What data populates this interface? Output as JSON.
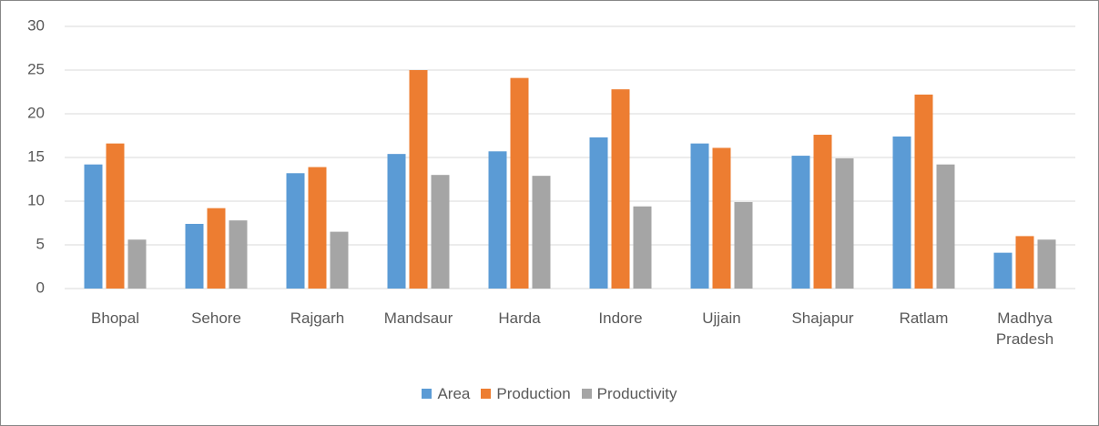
{
  "chart_data": {
    "type": "bar",
    "categories": [
      "Bhopal",
      "Sehore",
      "Rajgarh",
      "Mandsaur",
      "Harda",
      "Indore",
      "Ujjain",
      "Shajapur",
      "Ratlam",
      "Madhya Pradesh"
    ],
    "series": [
      {
        "name": "Area",
        "color": "#5b9bd5",
        "values": [
          14.2,
          7.4,
          13.2,
          15.4,
          15.7,
          17.3,
          16.6,
          15.2,
          17.4,
          4.1
        ]
      },
      {
        "name": "Production",
        "color": "#ed7d31",
        "values": [
          16.6,
          9.2,
          13.9,
          25,
          24.1,
          22.8,
          16.1,
          17.6,
          22.2,
          6.0
        ]
      },
      {
        "name": "Productivity",
        "color": "#a5a5a5",
        "values": [
          5.6,
          7.8,
          6.5,
          13.0,
          12.9,
          9.4,
          9.9,
          14.9,
          14.2,
          5.6
        ]
      }
    ],
    "ylim": [
      0,
      30
    ],
    "yticks": [
      0,
      5,
      10,
      15,
      20,
      25,
      30
    ],
    "grid": true,
    "legend": "bottom"
  }
}
